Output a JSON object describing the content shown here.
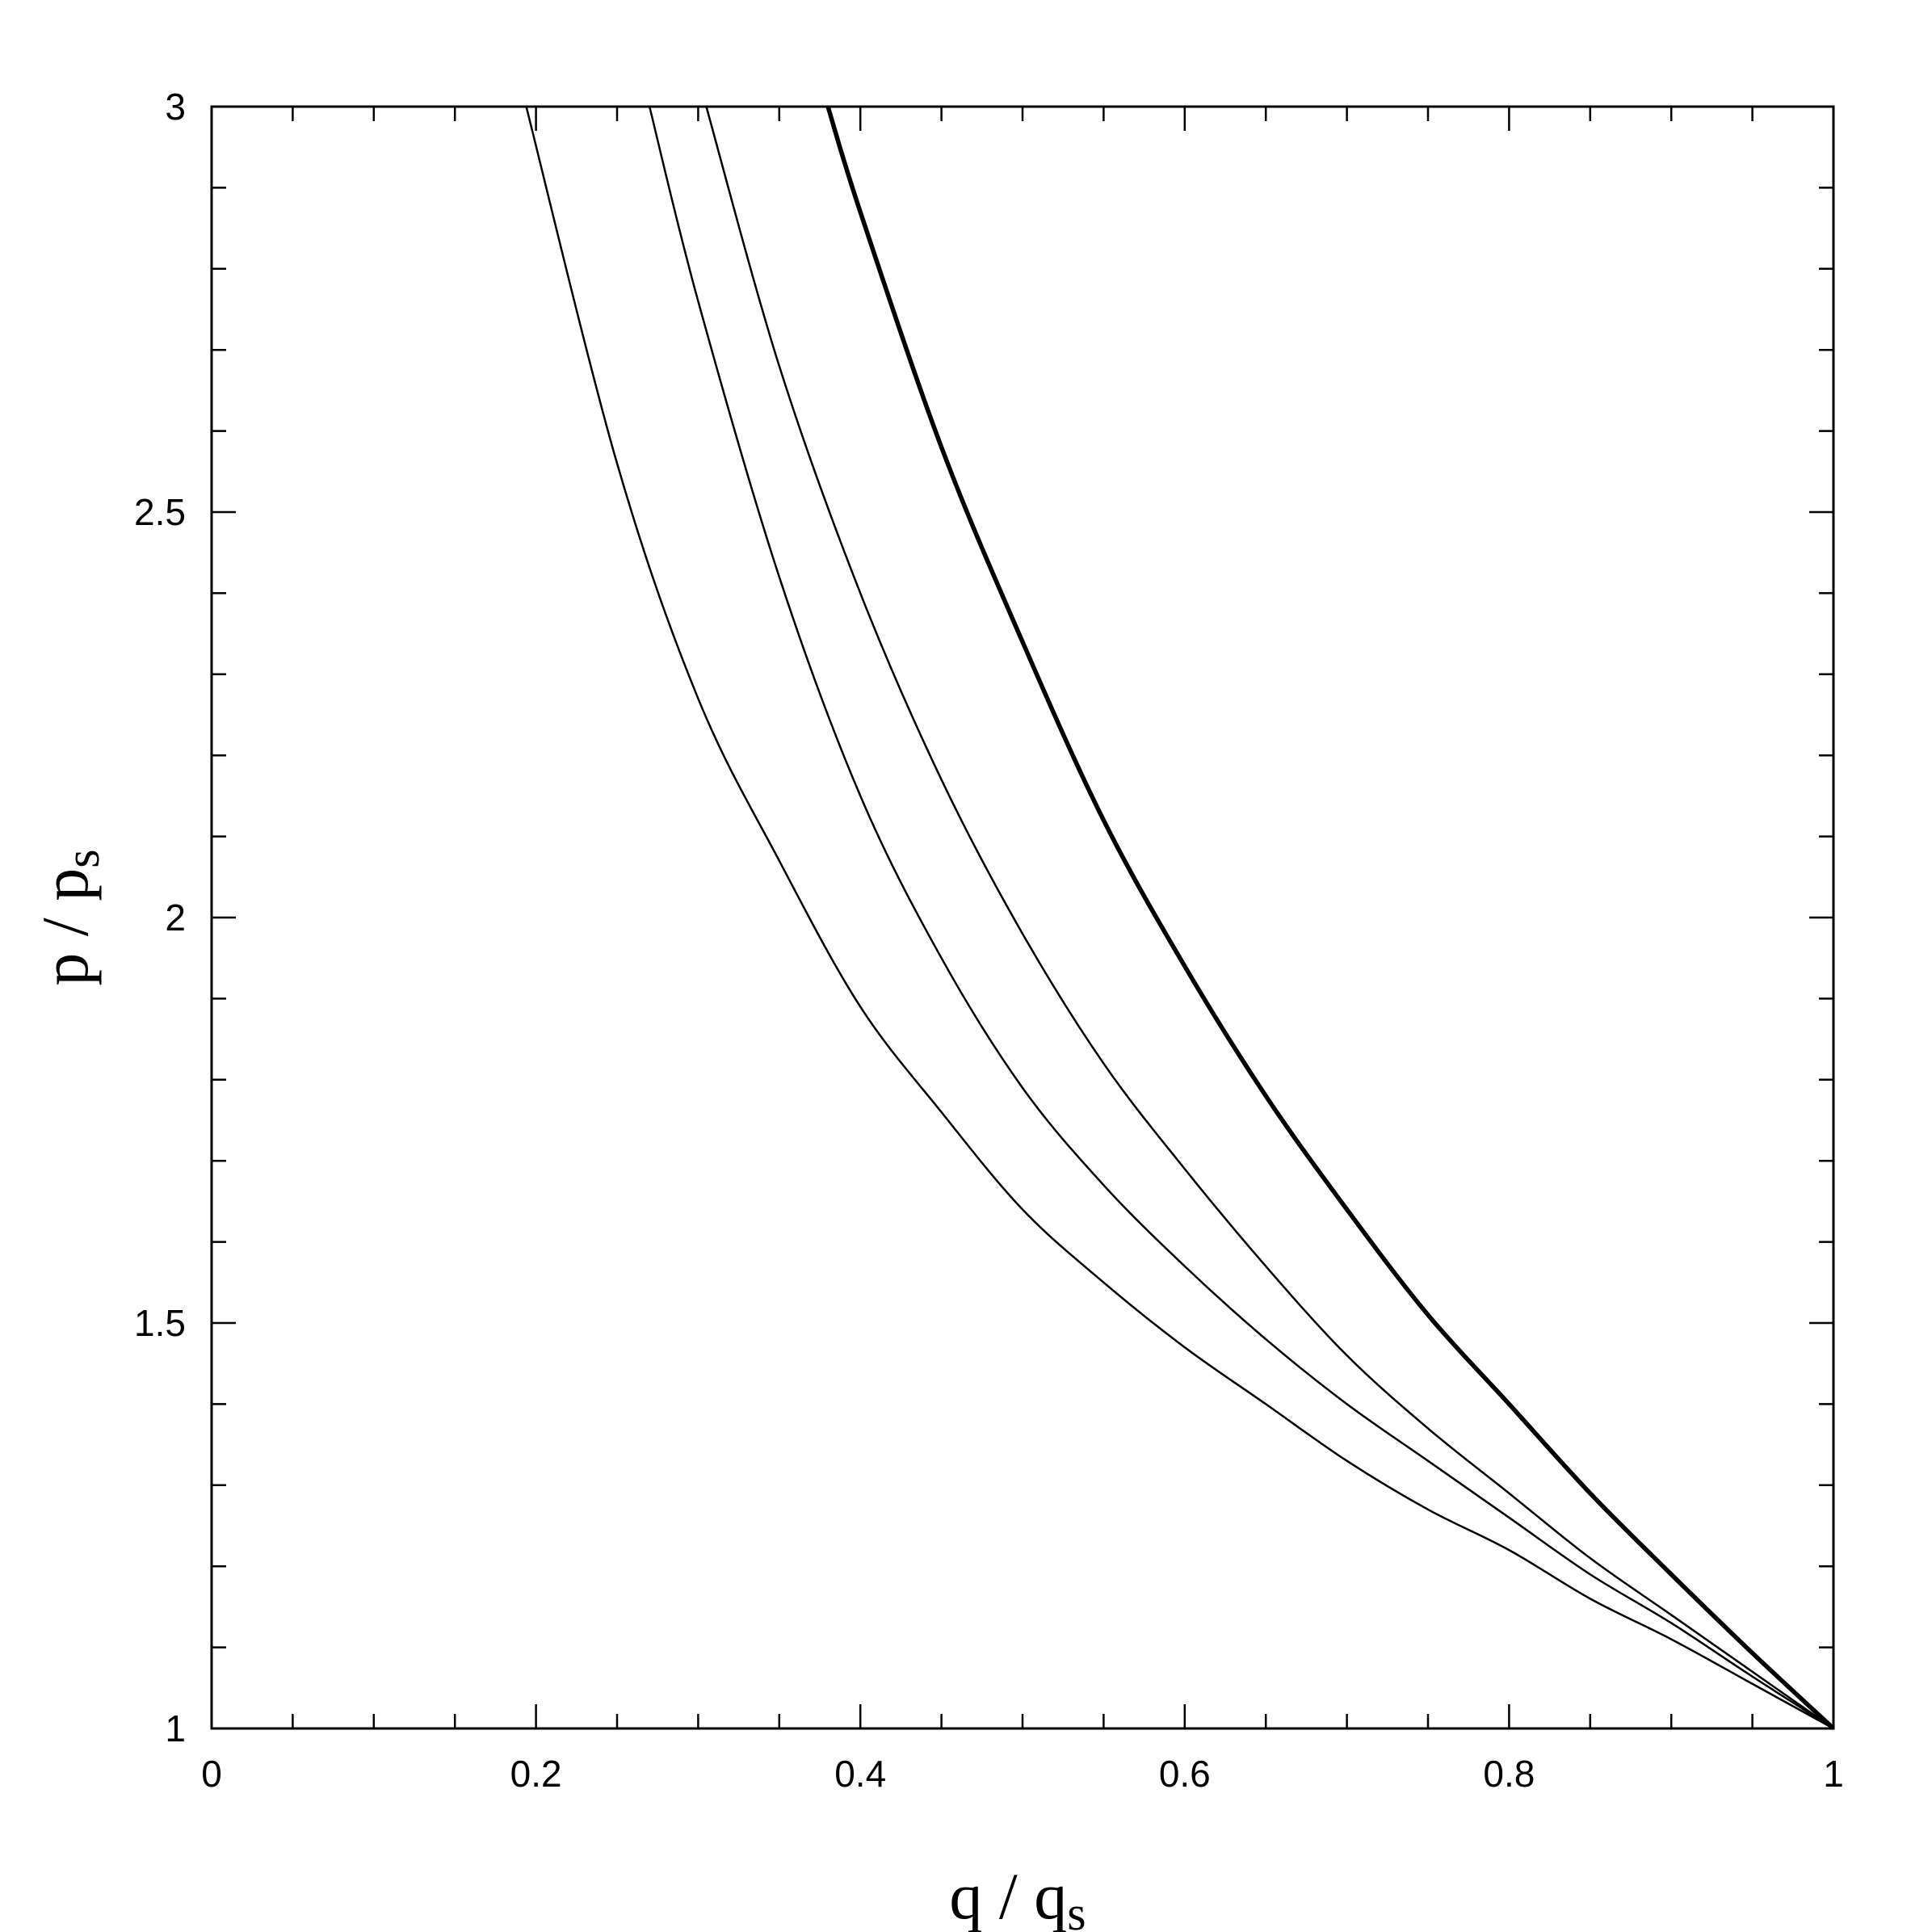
{
  "chart_data": {
    "type": "line",
    "xlabel": "q / q",
    "xlabel_subscript": "s",
    "ylabel": "p / p",
    "ylabel_subscript": "s",
    "xlim": [
      0,
      1
    ],
    "ylim": [
      1,
      3
    ],
    "x_ticks": [
      "0",
      "0.2",
      "0.4",
      "0.6",
      "0.8",
      "1"
    ],
    "x_tick_values": [
      0,
      0.2,
      0.4,
      0.6,
      0.8,
      1
    ],
    "y_ticks": [
      "1",
      "1.5",
      "2",
      "2.5",
      "3"
    ],
    "y_tick_values": [
      1,
      1.5,
      2,
      2.5,
      3
    ],
    "x_minor_step": 0.05,
    "y_minor_step": 0.1,
    "grid": false,
    "legend": "none",
    "series": [
      {
        "points": [
          [
            0.194,
            3.0
          ],
          [
            0.25,
            2.56
          ],
          [
            0.3,
            2.27
          ],
          [
            0.35,
            2.07
          ],
          [
            0.4,
            1.89
          ],
          [
            0.45,
            1.76
          ],
          [
            0.5,
            1.64
          ],
          [
            0.55,
            1.55
          ],
          [
            0.6,
            1.47
          ],
          [
            0.65,
            1.4
          ],
          [
            0.7,
            1.33
          ],
          [
            0.75,
            1.27
          ],
          [
            0.8,
            1.22
          ],
          [
            0.85,
            1.16
          ],
          [
            0.9,
            1.11
          ],
          [
            0.95,
            1.055
          ],
          [
            1.0,
            1.0
          ]
        ],
        "color": "#000000",
        "style": "thin"
      },
      {
        "points": [
          [
            0.27,
            3.0
          ],
          [
            0.3,
            2.76
          ],
          [
            0.35,
            2.42
          ],
          [
            0.4,
            2.15
          ],
          [
            0.45,
            1.95
          ],
          [
            0.5,
            1.79
          ],
          [
            0.55,
            1.67
          ],
          [
            0.6,
            1.57
          ],
          [
            0.65,
            1.48
          ],
          [
            0.7,
            1.4
          ],
          [
            0.75,
            1.33
          ],
          [
            0.8,
            1.26
          ],
          [
            0.85,
            1.19
          ],
          [
            0.9,
            1.13
          ],
          [
            0.95,
            1.064
          ],
          [
            1.0,
            1.0
          ]
        ],
        "color": "#000000",
        "style": "thin"
      },
      {
        "points": [
          [
            0.305,
            3.0
          ],
          [
            0.35,
            2.68
          ],
          [
            0.4,
            2.4
          ],
          [
            0.45,
            2.17
          ],
          [
            0.5,
            1.98
          ],
          [
            0.55,
            1.82
          ],
          [
            0.6,
            1.69
          ],
          [
            0.65,
            1.57
          ],
          [
            0.7,
            1.46
          ],
          [
            0.75,
            1.37
          ],
          [
            0.8,
            1.29
          ],
          [
            0.85,
            1.21
          ],
          [
            0.9,
            1.14
          ],
          [
            0.95,
            1.07
          ],
          [
            1.0,
            1.0
          ]
        ],
        "color": "#000000",
        "style": "thin"
      },
      {
        "points": [
          [
            0.38,
            3.0
          ],
          [
            0.4,
            2.87
          ],
          [
            0.45,
            2.58
          ],
          [
            0.5,
            2.34
          ],
          [
            0.55,
            2.12
          ],
          [
            0.6,
            1.94
          ],
          [
            0.65,
            1.78
          ],
          [
            0.7,
            1.64
          ],
          [
            0.75,
            1.51
          ],
          [
            0.8,
            1.4
          ],
          [
            0.85,
            1.29
          ],
          [
            0.9,
            1.19
          ],
          [
            0.95,
            1.093
          ],
          [
            1.0,
            1.0
          ]
        ],
        "color": "#000000",
        "style": "thick"
      }
    ]
  }
}
